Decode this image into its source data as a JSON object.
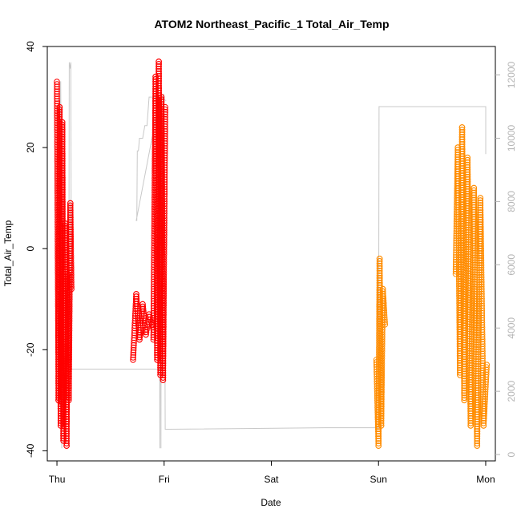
{
  "chart_data": {
    "type": "scatter",
    "title": "ATOM2 Northeast_Pacific_1 Total_Air_Temp",
    "xlabel": "Date",
    "ylabel": "Total_Air_Temp",
    "x_ticks": [
      "Thu",
      "Fri",
      "Sat",
      "Sun",
      "Mon"
    ],
    "x_unit": "days",
    "xlim": [
      -0.09,
      4.09
    ],
    "ylim": [
      -42,
      40
    ],
    "y_ticks": [
      -40,
      -20,
      0,
      20,
      40
    ],
    "y2lim": [
      -200,
      12900
    ],
    "y2_ticks": [
      0,
      2000,
      4000,
      6000,
      8000,
      10000,
      12000
    ],
    "grid": false,
    "legend": "none",
    "colors": {
      "series1": "#ff0000",
      "series2": "#ff8c00",
      "line": "#c8c8c8"
    },
    "series": [
      {
        "color": "#ff0000",
        "clusters": [
          {
            "x": [
              0.0,
              0.135
            ],
            "anchors": [
              [
                0.0,
                33
              ],
              [
                0.015,
                -30
              ],
              [
                0.025,
                28
              ],
              [
                0.035,
                -35
              ],
              [
                0.05,
                25
              ],
              [
                0.06,
                -38
              ],
              [
                0.075,
                5
              ],
              [
                0.09,
                -39
              ],
              [
                0.1,
                -5
              ],
              [
                0.11,
                -30
              ],
              [
                0.125,
                9
              ],
              [
                0.135,
                -8
              ]
            ]
          },
          {
            "x": [
              0.71,
              0.9
            ],
            "anchors": [
              [
                0.71,
                -22
              ],
              [
                0.74,
                -9
              ],
              [
                0.77,
                -18
              ],
              [
                0.8,
                -11
              ],
              [
                0.83,
                -17
              ],
              [
                0.86,
                -13
              ],
              [
                0.9,
                -16
              ]
            ]
          },
          {
            "x": [
              0.9,
              1.01
            ],
            "anchors": [
              [
                0.9,
                -18
              ],
              [
                0.92,
                34
              ],
              [
                0.935,
                -22
              ],
              [
                0.95,
                37
              ],
              [
                0.965,
                -25
              ],
              [
                0.975,
                30
              ],
              [
                0.99,
                -26
              ],
              [
                1.01,
                28
              ]
            ]
          }
        ]
      },
      {
        "color": "#ff8c00",
        "clusters": [
          {
            "x": [
              2.98,
              3.06
            ],
            "anchors": [
              [
                2.98,
                -22
              ],
              [
                3.0,
                -39
              ],
              [
                3.01,
                -2
              ],
              [
                3.025,
                -35
              ],
              [
                3.04,
                -8
              ],
              [
                3.06,
                -15
              ]
            ]
          },
          {
            "x": [
              3.72,
              4.01
            ],
            "anchors": [
              [
                3.72,
                -5
              ],
              [
                3.74,
                20
              ],
              [
                3.76,
                -25
              ],
              [
                3.78,
                24
              ],
              [
                3.8,
                -30
              ],
              [
                3.83,
                18
              ],
              [
                3.86,
                -35
              ],
              [
                3.89,
                12
              ],
              [
                3.92,
                -39
              ],
              [
                3.95,
                10
              ],
              [
                3.98,
                -35
              ],
              [
                4.01,
                -23
              ]
            ]
          }
        ]
      }
    ],
    "line_series": {
      "color": "#c8c8c8",
      "x": [
        0.02,
        0.025,
        0.03,
        0.035,
        0.04,
        0.045,
        0.05,
        0.06,
        0.08,
        0.1,
        0.11,
        0.115,
        0.12,
        0.125,
        0.13,
        0.135,
        0.14,
        0.15,
        0.98,
        0.985,
        0.99,
        0.995,
        1.0,
        1.005,
        1.01,
        0.96,
        0.74,
        0.745,
        0.75,
        0.76,
        0.77,
        0.8,
        0.82,
        0.84,
        0.86,
        0.88,
        0.9,
        0.93,
        0.955,
        0.96,
        0.965,
        0.97,
        0.975,
        0.98,
        1.0,
        1.01,
        1.02,
        1.025,
        1.03,
        1.04,
        1.05,
        2.5,
        3.0,
        3.005,
        3.01,
        3.02,
        3.03,
        3.05,
        3.1,
        3.5,
        3.7,
        3.72,
        3.73,
        3.735,
        3.74,
        3.75,
        3.76,
        3.77,
        3.78,
        3.8,
        3.82,
        3.85,
        3.88,
        3.9,
        3.92,
        3.95,
        3.97,
        3.99,
        4.0,
        4.0,
        4.0
      ],
      "y": [
        9000,
        11200,
        1500,
        11800,
        9000,
        200,
        3000,
        2500,
        2100,
        1800,
        2000,
        12400,
        12300,
        12200,
        12400,
        2700,
        2700,
        2700,
        2700,
        10500,
        11300,
        11400,
        11300,
        11200,
        11200,
        11300,
        7400,
        7400,
        9600,
        9600,
        10000,
        10000,
        10400,
        10400,
        11300,
        11300,
        11300,
        11300,
        11300,
        200,
        11300,
        200,
        11300,
        11300,
        11300,
        800,
        800,
        800,
        800,
        800,
        800,
        850,
        850,
        11000,
        11000,
        11000,
        11000,
        11000,
        11000,
        11000,
        11000,
        11000,
        11000,
        11000,
        11000,
        11000,
        11000,
        11000,
        11000,
        11000,
        11000,
        11000,
        11000,
        11000,
        11000,
        11000,
        11000,
        11000,
        11000,
        9500,
        10000
      ]
    }
  }
}
